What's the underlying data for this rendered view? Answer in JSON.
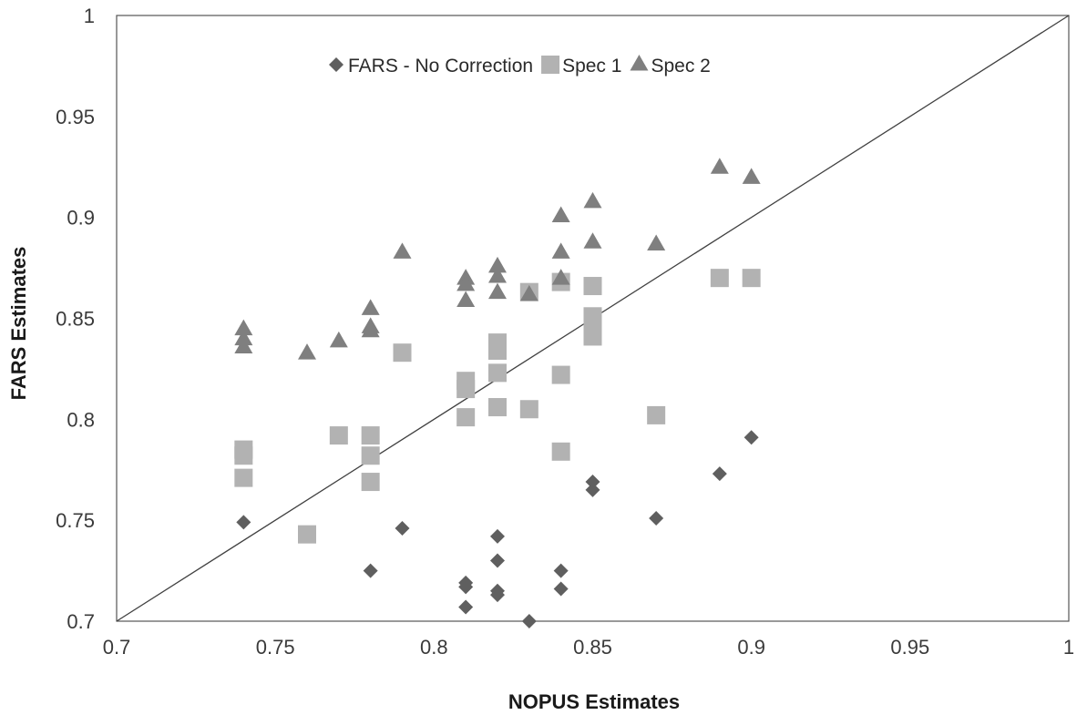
{
  "chart_data": {
    "type": "scatter",
    "title": "",
    "xlabel": "NOPUS Estimates",
    "ylabel": "FARS Estimates",
    "xlim": [
      0.7,
      1
    ],
    "ylim": [
      0.7,
      1
    ],
    "x_ticks": [
      "0.7",
      "0.75",
      "0.8",
      "0.85",
      "0.9",
      "0.95",
      "1"
    ],
    "y_ticks": [
      "0.7",
      "0.75",
      "0.8",
      "0.85",
      "0.9",
      "0.95",
      "1"
    ],
    "grid": false,
    "legend_position": "top-center",
    "reference_line": {
      "from": [
        0.7,
        0.7
      ],
      "to": [
        1,
        1
      ],
      "color": "#404040"
    },
    "series": [
      {
        "name": "FARS - No Correction",
        "marker": "diamond",
        "color": "#5f5f5f",
        "points": [
          [
            0.74,
            0.749
          ],
          [
            0.78,
            0.725
          ],
          [
            0.79,
            0.746
          ],
          [
            0.81,
            0.719
          ],
          [
            0.81,
            0.717
          ],
          [
            0.81,
            0.707
          ],
          [
            0.82,
            0.742
          ],
          [
            0.82,
            0.73
          ],
          [
            0.82,
            0.715
          ],
          [
            0.82,
            0.713
          ],
          [
            0.83,
            0.7
          ],
          [
            0.84,
            0.725
          ],
          [
            0.84,
            0.716
          ],
          [
            0.85,
            0.769
          ],
          [
            0.85,
            0.765
          ],
          [
            0.87,
            0.751
          ],
          [
            0.89,
            0.773
          ],
          [
            0.9,
            0.791
          ]
        ]
      },
      {
        "name": "Spec 1",
        "marker": "square",
        "color": "#b2b2b2",
        "points": [
          [
            0.74,
            0.785
          ],
          [
            0.74,
            0.782
          ],
          [
            0.74,
            0.771
          ],
          [
            0.76,
            0.743
          ],
          [
            0.77,
            0.792
          ],
          [
            0.78,
            0.792
          ],
          [
            0.78,
            0.782
          ],
          [
            0.78,
            0.769
          ],
          [
            0.79,
            0.833
          ],
          [
            0.81,
            0.819
          ],
          [
            0.81,
            0.815
          ],
          [
            0.81,
            0.801
          ],
          [
            0.82,
            0.838
          ],
          [
            0.82,
            0.834
          ],
          [
            0.82,
            0.823
          ],
          [
            0.82,
            0.806
          ],
          [
            0.83,
            0.863
          ],
          [
            0.83,
            0.805
          ],
          [
            0.84,
            0.868
          ],
          [
            0.84,
            0.822
          ],
          [
            0.84,
            0.784
          ],
          [
            0.85,
            0.866
          ],
          [
            0.85,
            0.851
          ],
          [
            0.85,
            0.847
          ],
          [
            0.85,
            0.841
          ],
          [
            0.87,
            0.802
          ],
          [
            0.89,
            0.87
          ],
          [
            0.9,
            0.87
          ]
        ]
      },
      {
        "name": "Spec 2",
        "marker": "triangle",
        "color": "#7f7f7f",
        "points": [
          [
            0.74,
            0.845
          ],
          [
            0.74,
            0.84
          ],
          [
            0.74,
            0.836
          ],
          [
            0.76,
            0.833
          ],
          [
            0.77,
            0.839
          ],
          [
            0.78,
            0.855
          ],
          [
            0.78,
            0.846
          ],
          [
            0.78,
            0.844
          ],
          [
            0.79,
            0.883
          ],
          [
            0.81,
            0.87
          ],
          [
            0.81,
            0.867
          ],
          [
            0.81,
            0.859
          ],
          [
            0.82,
            0.876
          ],
          [
            0.82,
            0.871
          ],
          [
            0.82,
            0.863
          ],
          [
            0.83,
            0.862
          ],
          [
            0.84,
            0.901
          ],
          [
            0.84,
            0.883
          ],
          [
            0.84,
            0.87
          ],
          [
            0.85,
            0.908
          ],
          [
            0.85,
            0.888
          ],
          [
            0.87,
            0.887
          ],
          [
            0.89,
            0.925
          ],
          [
            0.9,
            0.92
          ]
        ]
      }
    ]
  }
}
